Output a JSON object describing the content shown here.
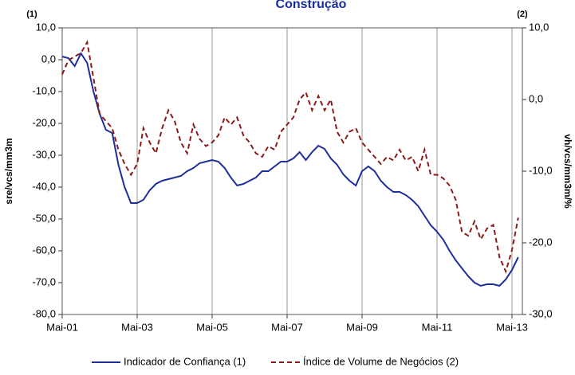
{
  "chart_data": {
    "type": "line",
    "title": "Construção",
    "annotations": [
      "(1)",
      "(2)"
    ],
    "ylabel": "sre/vcs/mm3m",
    "y2label": "vh/vcs/mm3m/%",
    "categories": [
      "Mai-01",
      null,
      null,
      null,
      null,
      null,
      null,
      null,
      null,
      null,
      null,
      null,
      "Mai-03",
      null,
      null,
      null,
      null,
      null,
      null,
      null,
      null,
      null,
      null,
      null,
      "Mai-05",
      null,
      null,
      null,
      null,
      null,
      null,
      null,
      null,
      null,
      null,
      null,
      "Mai-07",
      null,
      null,
      null,
      null,
      null,
      null,
      null,
      null,
      null,
      null,
      null,
      "Mai-09",
      null,
      null,
      null,
      null,
      null,
      null,
      null,
      null,
      null,
      null,
      null,
      "Mai-11",
      null,
      null,
      null,
      null,
      null,
      null,
      null,
      null,
      null,
      null,
      null,
      "Mai-13",
      null
    ],
    "series": [
      {
        "name": "Indicador de Confiança (1)",
        "color": "#1f2f9a",
        "dash": false,
        "axis": "y",
        "values": [
          1.0,
          0.5,
          -2,
          2,
          -1,
          -10,
          -17,
          -22,
          -23,
          -33,
          -40,
          -45,
          -45,
          -44,
          -41,
          -39,
          -38,
          -37.5,
          -37,
          -36.5,
          -35,
          -34,
          -32.5,
          -32,
          -31.5,
          -32,
          -34,
          -37,
          -39.5,
          -39,
          -38,
          -37,
          -35,
          -35,
          -33.5,
          -32,
          -32,
          -31,
          -29,
          -31.5,
          -29,
          -27,
          -28,
          -31,
          -33,
          -36,
          -38,
          -39.5,
          -35,
          -33.5,
          -35,
          -38,
          -40,
          -41.5,
          -41.5,
          -42.5,
          -44,
          -46,
          -49,
          -52,
          -54,
          -56.5,
          -60,
          -63,
          -65.5,
          -68,
          -70,
          -71,
          -70.5,
          -70.5,
          -71,
          -69,
          -66,
          -62
        ]
      },
      {
        "name": "Índice de Volume de Negócios (2)",
        "color": "#8b1a1a",
        "dash": true,
        "axis": "y2",
        "values": [
          3.5,
          5.5,
          6,
          6.5,
          8,
          3,
          -2,
          -3,
          -4,
          -7,
          -9,
          -10.5,
          -9,
          -4,
          -6,
          -7.5,
          -4,
          -1.5,
          -3,
          -6,
          -7.5,
          -3.5,
          -5.5,
          -6.5,
          -6,
          -5,
          -2.5,
          -3.5,
          -2.5,
          -5,
          -6,
          -7.5,
          -8,
          -6.5,
          -7,
          -4.5,
          -3.5,
          -2.5,
          0,
          1,
          -1.5,
          0.5,
          -1.5,
          0,
          -4.5,
          -6,
          -4.5,
          -4,
          -6,
          -7,
          -8,
          -9,
          -8,
          -8.5,
          -7,
          -8.5,
          -8,
          -10,
          -7,
          -10.5,
          -10.5,
          -11,
          -12,
          -14,
          -18.5,
          -19,
          -17,
          -19.5,
          -18,
          -17.5,
          -22,
          -24,
          -21,
          -16.5
        ]
      }
    ],
    "ylim": [
      -80,
      10
    ],
    "yticks": [
      {
        "value": -80,
        "label": "-80,0"
      },
      {
        "value": -70,
        "label": "-70,0"
      },
      {
        "value": -60,
        "label": "-60,0"
      },
      {
        "value": -50,
        "label": "-50,0"
      },
      {
        "value": -40,
        "label": "-40,0"
      },
      {
        "value": -30,
        "label": "-30,0"
      },
      {
        "value": -20,
        "label": "-20,0"
      },
      {
        "value": -10,
        "label": "-10,0"
      },
      {
        "value": 0,
        "label": "0,0"
      },
      {
        "value": 10,
        "label": "10,0"
      }
    ],
    "y2lim": [
      -30,
      10
    ],
    "y2ticks": [
      {
        "value": -30,
        "label": "-30,0"
      },
      {
        "value": -20,
        "label": "-20,0"
      },
      {
        "value": -10,
        "label": "-10,0"
      },
      {
        "value": 0,
        "label": "0,0"
      },
      {
        "value": 10,
        "label": "10,0"
      }
    ],
    "grid": true,
    "legend": "bottom"
  }
}
